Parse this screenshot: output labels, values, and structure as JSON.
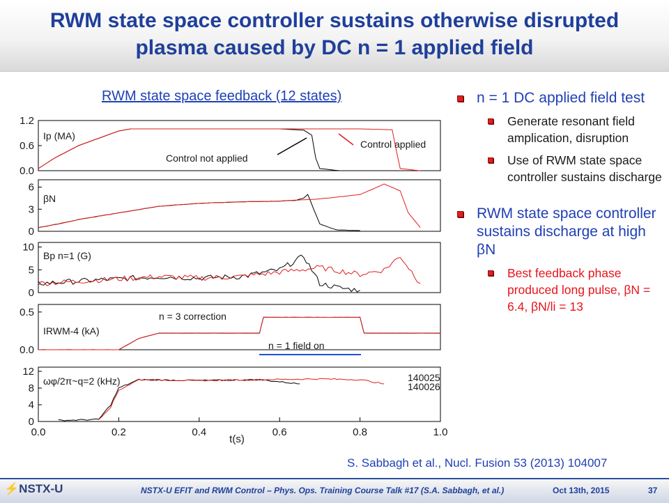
{
  "slide": {
    "title_line1": "RWM state space controller sustains otherwise disrupted",
    "title_line2": "plasma caused by DC n = 1 applied field",
    "chart_heading": "RWM state space feedback (12 states)",
    "reference": "S. Sabbagh et al., Nucl. Fusion 53 (2013) 104007",
    "page_number": "37"
  },
  "bullets": [
    {
      "text": "n = 1 DC applied field test",
      "level": 1,
      "color": "blue"
    },
    {
      "text": "Generate resonant field amplication, disruption",
      "level": 2,
      "color": "black"
    },
    {
      "text": "Use of RWM state space controller sustains discharge",
      "level": 2,
      "color": "black"
    },
    {
      "text": "RWM state space controller sustains discharge at high βN",
      "level": 1,
      "color": "blue"
    },
    {
      "text": "Best feedback phase produced long pulse, βN = 6.4, βN/li = 13",
      "level": 2,
      "color": "red"
    }
  ],
  "footer": {
    "logo_text": "NSTX-U",
    "talk": "NSTX-U EFIT and RWM Control – Phys. Ops. Training Course Talk #17 (S.A. Sabbagh, et al.)",
    "date": "Oct 13th, 2015"
  },
  "colors": {
    "title": "#1f3f9a",
    "bullet_text": "#1f3fb5",
    "control_applied": "#e31a1c",
    "control_not_applied": "#000000",
    "field_on_arrow": "#1f4fd8"
  },
  "chart_data": {
    "type": "line",
    "xlabel": "t(s)",
    "x_ticks": [
      "0.0",
      "0.2",
      "0.4",
      "0.6",
      "0.8",
      "1.0"
    ],
    "xlim": [
      0,
      1.0
    ],
    "legend": [
      "140025",
      "140026"
    ],
    "panels": [
      {
        "label": "Ip (MA)",
        "yticks": [
          "1.2",
          "0.6",
          "0.0"
        ],
        "ylim": [
          0,
          1.2
        ],
        "series": [
          {
            "name": "140025",
            "x": [
              0.0,
              0.04,
              0.1,
              0.2,
              0.23,
              0.4,
              0.6,
              0.66,
              0.68,
              0.69,
              0.7,
              0.75,
              0.8
            ],
            "y": [
              0.05,
              0.3,
              0.6,
              0.95,
              1.0,
              1.0,
              1.0,
              0.97,
              0.85,
              0.3,
              0.05,
              0.0,
              0.0
            ]
          },
          {
            "name": "140026",
            "x": [
              0.0,
              0.04,
              0.1,
              0.2,
              0.23,
              0.4,
              0.6,
              0.8,
              0.88,
              0.89,
              0.9,
              0.95
            ],
            "y": [
              0.05,
              0.3,
              0.6,
              0.95,
              1.0,
              1.0,
              1.0,
              1.0,
              0.98,
              0.5,
              0.05,
              0.0
            ]
          }
        ],
        "annotations": [
          "Control not applied",
          "Control applied"
        ]
      },
      {
        "label": "βN",
        "yticks": [
          "6",
          "3",
          "0"
        ],
        "ylim": [
          0,
          7
        ],
        "series": [
          {
            "name": "140025",
            "x": [
              0.0,
              0.05,
              0.1,
              0.2,
              0.3,
              0.4,
              0.5,
              0.6,
              0.64,
              0.66,
              0.67,
              0.7,
              0.74,
              0.8
            ],
            "y": [
              0.5,
              1.0,
              1.6,
              2.5,
              3.4,
              3.8,
              4.0,
              4.1,
              4.2,
              4.5,
              5.0,
              1.0,
              0.2,
              0.1
            ]
          },
          {
            "name": "140026",
            "x": [
              0.0,
              0.05,
              0.1,
              0.2,
              0.3,
              0.4,
              0.5,
              0.6,
              0.7,
              0.8,
              0.86,
              0.9,
              0.92,
              0.95
            ],
            "y": [
              0.5,
              1.0,
              1.6,
              2.5,
              3.4,
              3.8,
              4.0,
              4.1,
              4.4,
              5.0,
              6.4,
              5.5,
              2.5,
              0.5
            ]
          }
        ]
      },
      {
        "label": "Bp n=1 (G)",
        "yticks": [
          "10",
          "5",
          "0"
        ],
        "ylim": [
          0,
          11
        ],
        "series": [
          {
            "name": "140025",
            "x": [
              0.0,
              0.1,
              0.2,
              0.3,
              0.4,
              0.5,
              0.6,
              0.64,
              0.66,
              0.68,
              0.7,
              0.75,
              0.8
            ],
            "y": [
              2.0,
              2.5,
              3.0,
              3.5,
              3.2,
              3.5,
              5.0,
              7.0,
              8.0,
              5.0,
              2.0,
              1.0,
              0.5
            ]
          },
          {
            "name": "140026",
            "x": [
              0.0,
              0.1,
              0.2,
              0.3,
              0.4,
              0.5,
              0.6,
              0.7,
              0.8,
              0.86,
              0.9,
              0.95
            ],
            "y": [
              2.0,
              2.5,
              3.0,
              3.5,
              3.2,
              3.5,
              4.5,
              5.5,
              4.0,
              5.0,
              8.0,
              2.0
            ]
          }
        ]
      },
      {
        "label": "IRWM-4 (kA)",
        "yticks": [
          "0.5",
          "0.0"
        ],
        "ylim": [
          0,
          0.6
        ],
        "series": [
          {
            "name": "140025",
            "x": [
              0.0,
              0.2,
              0.25,
              0.3,
              0.55,
              0.56,
              0.8,
              0.81,
              1.0
            ],
            "y": [
              0.0,
              0.0,
              0.15,
              0.22,
              0.22,
              0.43,
              0.43,
              0.22,
              0.22
            ]
          },
          {
            "name": "140026",
            "x": [
              0.0,
              0.2,
              0.25,
              0.3,
              0.55,
              0.56,
              0.8,
              0.81,
              0.95,
              1.0
            ],
            "y": [
              0.0,
              0.0,
              0.15,
              0.22,
              0.22,
              0.43,
              0.43,
              0.22,
              0.22,
              0.22
            ]
          }
        ],
        "annotations": [
          "n = 3 correction",
          "n = 1 field on"
        ]
      },
      {
        "label": "ωφ/2π~q=2 (kHz)",
        "yticks": [
          "12",
          "8",
          "4",
          "0"
        ],
        "ylim": [
          0,
          13
        ],
        "series": [
          {
            "name": "140025",
            "x": [
              0.05,
              0.08,
              0.15,
              0.18,
              0.2,
              0.25,
              0.4,
              0.55,
              0.6,
              0.65
            ],
            "y": [
              0.3,
              0.3,
              0.5,
              4.0,
              8.0,
              10.0,
              9.8,
              10.0,
              9.5,
              9.0
            ]
          },
          {
            "name": "140026",
            "x": [
              0.15,
              0.18,
              0.2,
              0.25,
              0.4,
              0.55,
              0.7,
              0.8,
              0.86
            ],
            "y": [
              0.5,
              3.5,
              7.5,
              10.0,
              9.8,
              10.0,
              10.2,
              10.0,
              9.0
            ]
          }
        ]
      }
    ]
  }
}
